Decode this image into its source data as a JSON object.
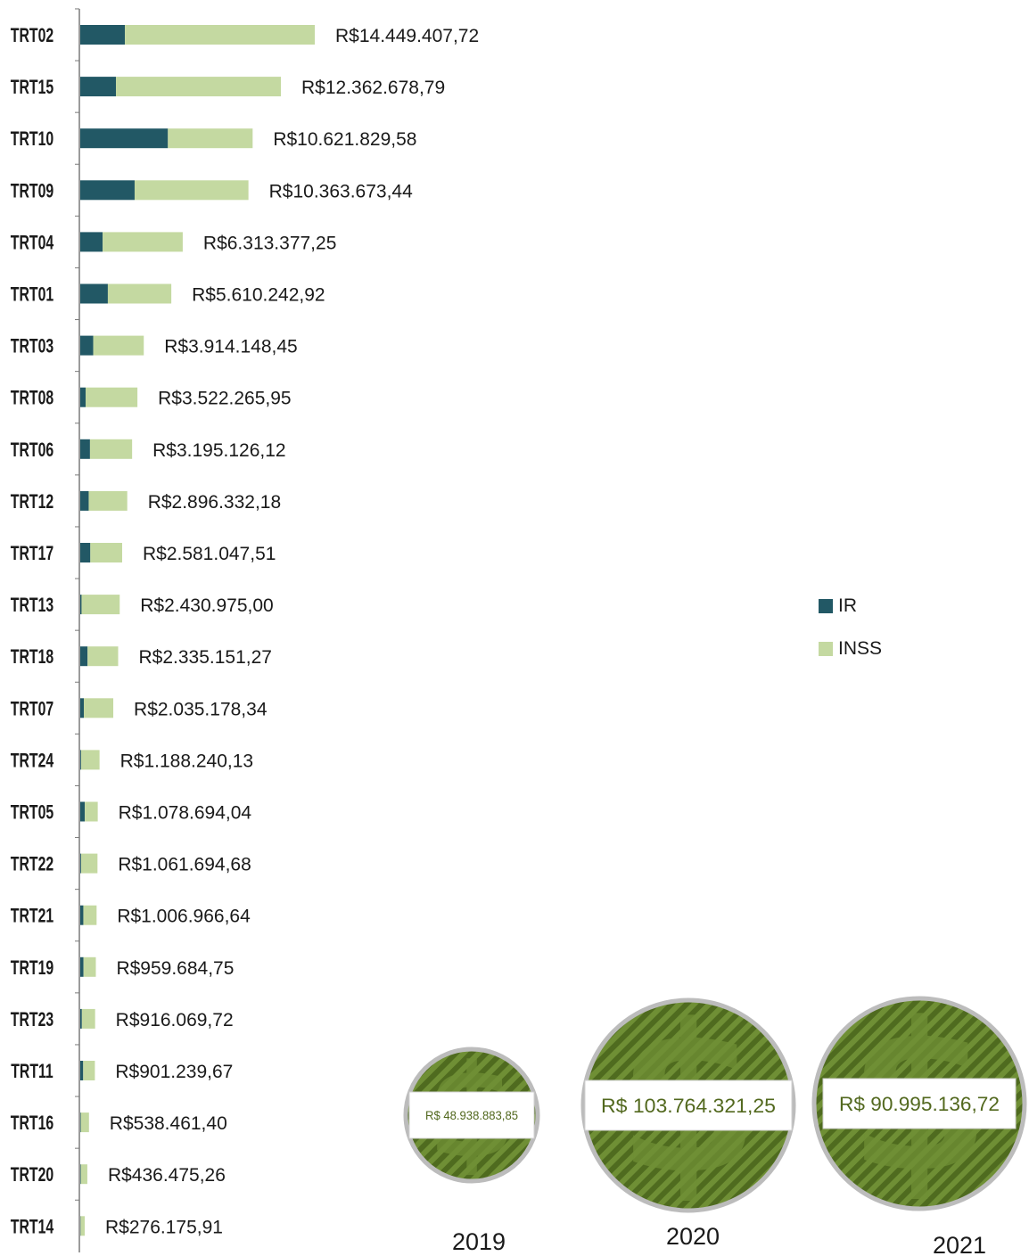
{
  "colors": {
    "ir": "#225865",
    "inss": "#c4d9a1",
    "coin_dark": "#4f6b1f",
    "coin_light": "#6f8f35",
    "coin_rim": "#bcbcbc",
    "coin_text": "#52681e",
    "axis": "#7a7a7a"
  },
  "legend": {
    "items": [
      {
        "label": "IR",
        "color": "#225865"
      },
      {
        "label": "INSS",
        "color": "#c4d9a1"
      }
    ],
    "position": "right"
  },
  "chart_data": {
    "type": "bar",
    "orientation": "horizontal",
    "stacked": true,
    "categories": [
      "TRT02",
      "TRT15",
      "TRT10",
      "TRT09",
      "TRT04",
      "TRT01",
      "TRT03",
      "TRT08",
      "TRT06",
      "TRT12",
      "TRT17",
      "TRT13",
      "TRT18",
      "TRT07",
      "TRT24",
      "TRT05",
      "TRT22",
      "TRT21",
      "TRT19",
      "TRT23",
      "TRT11",
      "TRT16",
      "TRT20",
      "TRT14"
    ],
    "series": [
      {
        "name": "IR",
        "values": [
          2750000,
          2200000,
          5400000,
          3350000,
          1380000,
          1700000,
          800000,
          330000,
          600000,
          520000,
          620000,
          80000,
          450000,
          220000,
          50000,
          280000,
          50000,
          190000,
          200000,
          100000,
          180000,
          30000,
          30000,
          20000
        ]
      },
      {
        "name": "INSS",
        "values": [
          11699407.72,
          10162678.79,
          5221829.58,
          7013673.44,
          4933377.25,
          3910242.92,
          3114148.45,
          3192265.95,
          2595126.12,
          2376332.18,
          1961047.51,
          2350975.0,
          1885151.27,
          1815178.34,
          1138240.13,
          798694.04,
          1011694.68,
          816966.64,
          759684.75,
          816069.72,
          721239.67,
          508461.4,
          406475.26,
          256175.91
        ]
      }
    ],
    "total_labels": [
      "R$14.449.407,72",
      "R$12.362.678,79",
      "R$10.621.829,58",
      "R$10.363.673,44",
      "R$6.313.377,25",
      "R$5.610.242,92",
      "R$3.914.148,45",
      "R$3.522.265,95",
      "R$3.195.126,12",
      "R$2.896.332,18",
      "R$2.581.047,51",
      "R$2.430.975,00",
      "R$2.335.151,27",
      "R$2.035.178,34",
      "R$1.188.240,13",
      "R$1.078.694,04",
      "R$1.061.694,68",
      "R$1.006.966,64",
      "R$959.684,75",
      "R$916.069,72",
      "R$901.239,67",
      "R$538.461,40",
      "R$436.475,26",
      "R$276.175,91"
    ],
    "totals": [
      14449407.72,
      12362678.79,
      10621829.58,
      10363673.44,
      6313377.25,
      5610242.92,
      3914148.45,
      3522265.95,
      3195126.12,
      2896332.18,
      2581047.51,
      2430975.0,
      2335151.27,
      2035178.34,
      1188240.13,
      1078694.04,
      1061694.68,
      1006966.64,
      959684.75,
      916069.72,
      901239.67,
      538461.4,
      436475.26,
      276175.91
    ],
    "xlim": [
      0,
      14449407.72
    ],
    "grid": false
  },
  "yearly_totals": [
    {
      "year": "2019",
      "label": "R$ 48.938.883,85",
      "value": 48938883.85
    },
    {
      "year": "2020",
      "label": "R$ 103.764.321,25",
      "value": 103764321.25
    },
    {
      "year": "2021",
      "label": "R$ 90.995.136,72",
      "value": 90995136.72
    }
  ],
  "coin_icon": "dollar-sign-icon"
}
